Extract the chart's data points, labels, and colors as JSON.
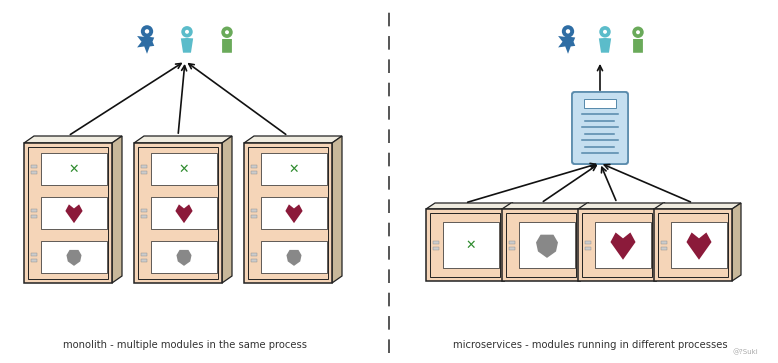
{
  "left_label": "monolith - multiple modules in the same process",
  "right_label": "microservices - modules running in different processes",
  "watermark": "@?Suki",
  "bg_color": "#ffffff",
  "box_fill": "#f5d5b8",
  "box_top_fill": "#f0ece0",
  "box_right_fill": "#c8b89a",
  "box_border": "#222222",
  "divider_color": "#555555",
  "person_blue": "#2e6da4",
  "person_teal": "#5bbcca",
  "person_green": "#6aaa5a",
  "server_fill": "#c5dff0",
  "server_border": "#5588aa",
  "arrow_color": "#111111",
  "green_x": "#2e8b2e",
  "red_heart": "#8b1a3a",
  "gray_blob": "#888888"
}
